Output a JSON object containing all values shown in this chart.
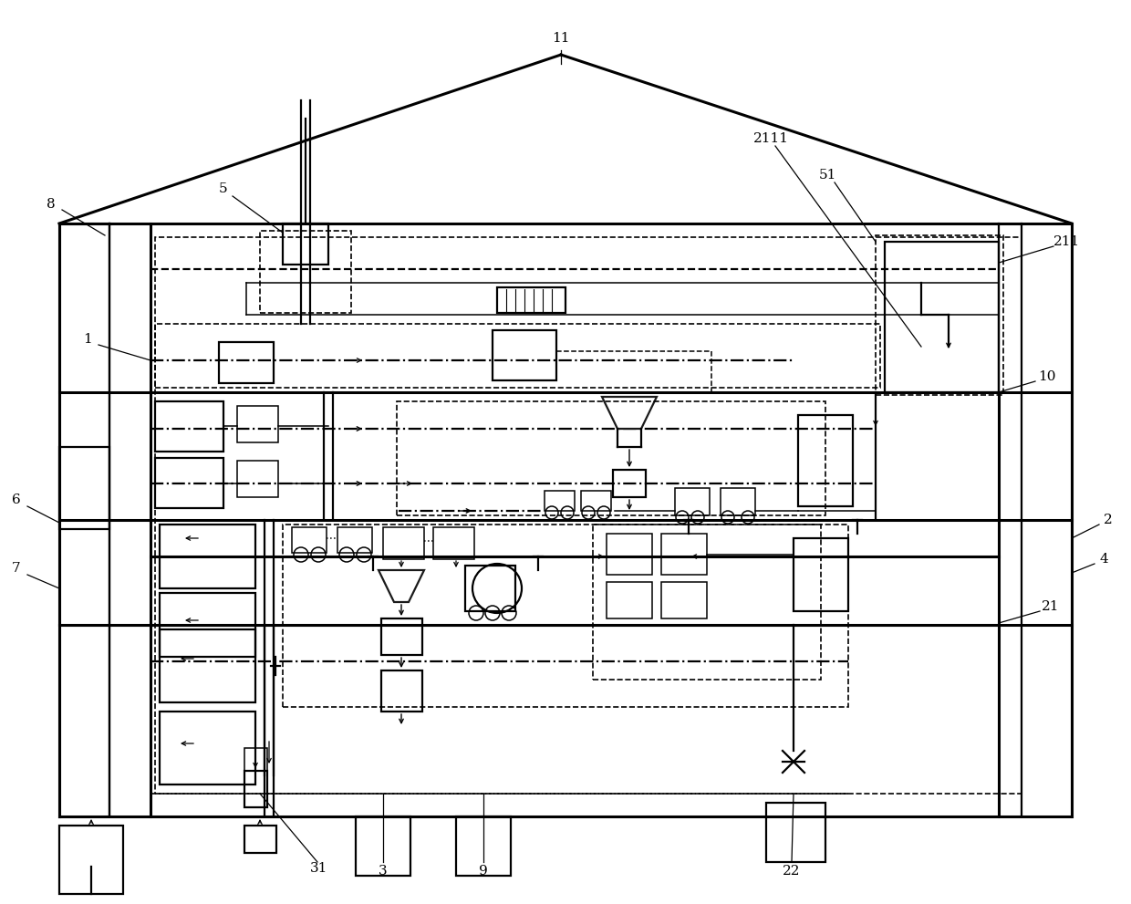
{
  "bg_color": "#ffffff",
  "line_color": "#1a1a1a",
  "fig_width": 12.4,
  "fig_height": 9.91,
  "dpi": 100
}
